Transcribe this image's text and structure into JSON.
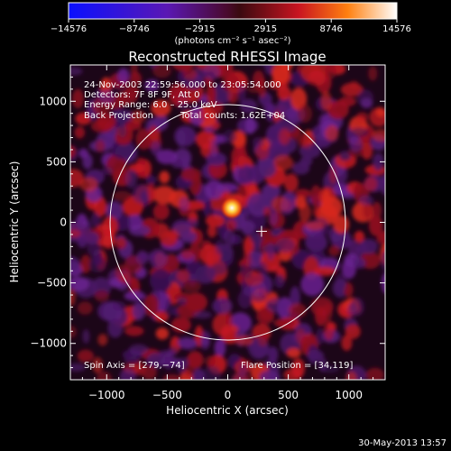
{
  "chart_data": {
    "type": "heatmap",
    "title": "Reconstructed RHESSI Image",
    "xlabel": "Heliocentric X (arcsec)",
    "ylabel": "Heliocentric Y (arcsec)",
    "xlim": [
      -1300,
      1300
    ],
    "ylim": [
      -1300,
      1300
    ],
    "x_ticks": [
      -1000,
      -500,
      0,
      500,
      1000
    ],
    "y_ticks": [
      -1000,
      -500,
      0,
      500,
      1000
    ],
    "x_tick_labels": [
      "−1000",
      "−500",
      "0",
      "500",
      "1000"
    ],
    "y_tick_labels": [
      "−1000",
      "−500",
      "0",
      "500",
      "1000"
    ],
    "colorbar": {
      "range": [
        -14576,
        14576
      ],
      "ticks": [
        -14576,
        -8746,
        -2915,
        2915,
        8746,
        14576
      ],
      "tick_labels": [
        "−14576",
        "−8746",
        "−2915",
        "2915",
        "8746",
        "14576"
      ],
      "units": "(photons cm⁻² s⁻¹ asec⁻²)"
    },
    "info_lines": [
      "24-Nov-2003 22:59:56.000 to 23:05:54.000",
      "Detectors: 7F 8F 9F, Att 0",
      "Energy Range: 6.0 – 25.0 keV",
      "Back Projection"
    ],
    "total_counts": "Total counts: 1.62E+04",
    "spin_axis": "Spin Axis = [279,−74]",
    "flare_position": "Flare Position = [34,119]",
    "source": {
      "x": 34,
      "y": 119
    },
    "spin_axis_point": {
      "x": 279,
      "y": -74
    },
    "solar_limb_radius": 972,
    "grid": false
  },
  "footer": {
    "timestamp": "30-May-2013 13:57"
  }
}
